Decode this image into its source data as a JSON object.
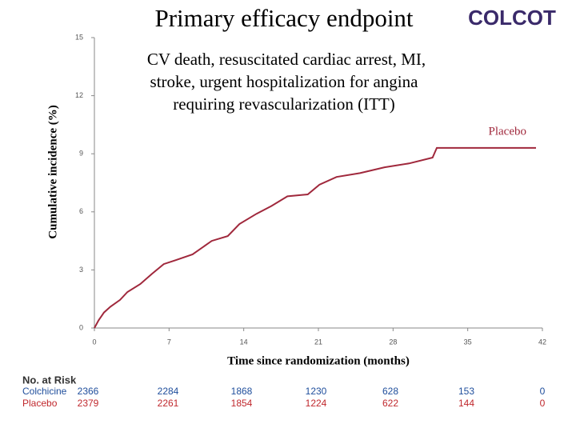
{
  "chart_data": {
    "type": "line",
    "title": "Primary efficacy endpoint",
    "logo": "COLCOT",
    "annotation": [
      "CV death, resuscitated cardiac arrest, MI,",
      "stroke, urgent hospitalization for angina",
      "requiring revascularization (ITT)"
    ],
    "x_label": "Time since randomization (months)",
    "y_label": "Cumulative incidence (%)",
    "x": [
      0,
      0.4,
      0.9,
      1.5,
      2.4,
      3.1,
      4.3,
      5.4,
      6.5,
      7.6,
      9.2,
      11.0,
      12.5,
      13.6,
      15.2,
      16.6,
      18.1,
      20.0,
      21.1,
      22.7,
      24.9,
      27.2,
      29.5,
      31.7,
      32.1,
      41.4
    ],
    "series": [
      {
        "name": "Placebo",
        "color": "#a0283c",
        "values": [
          0,
          0.4,
          0.8,
          1.1,
          1.45,
          1.86,
          2.27,
          2.8,
          3.3,
          3.5,
          3.8,
          4.5,
          4.75,
          5.37,
          5.9,
          6.3,
          6.8,
          6.9,
          7.4,
          7.8,
          8.0,
          8.3,
          8.5,
          8.8,
          9.3,
          9.3
        ]
      }
    ],
    "xlim": [
      0,
      42
    ],
    "xticks": [
      0,
      7,
      14,
      21,
      28,
      35,
      42
    ],
    "ylim": [
      0,
      15
    ],
    "yticks": [
      0,
      3,
      6,
      9,
      12,
      15
    ],
    "risk_table": {
      "title": "No. at Risk",
      "rows": [
        {
          "name": "Colchicine",
          "color": "#1f4e9c",
          "values": [
            "2366",
            "2284",
            "1868",
            "1230",
            "628",
            "153",
            "0"
          ]
        },
        {
          "name": "Placebo",
          "color": "#c0282d",
          "values": [
            "2379",
            "2261",
            "1854",
            "1224",
            "622",
            "144",
            "0"
          ]
        }
      ]
    }
  }
}
